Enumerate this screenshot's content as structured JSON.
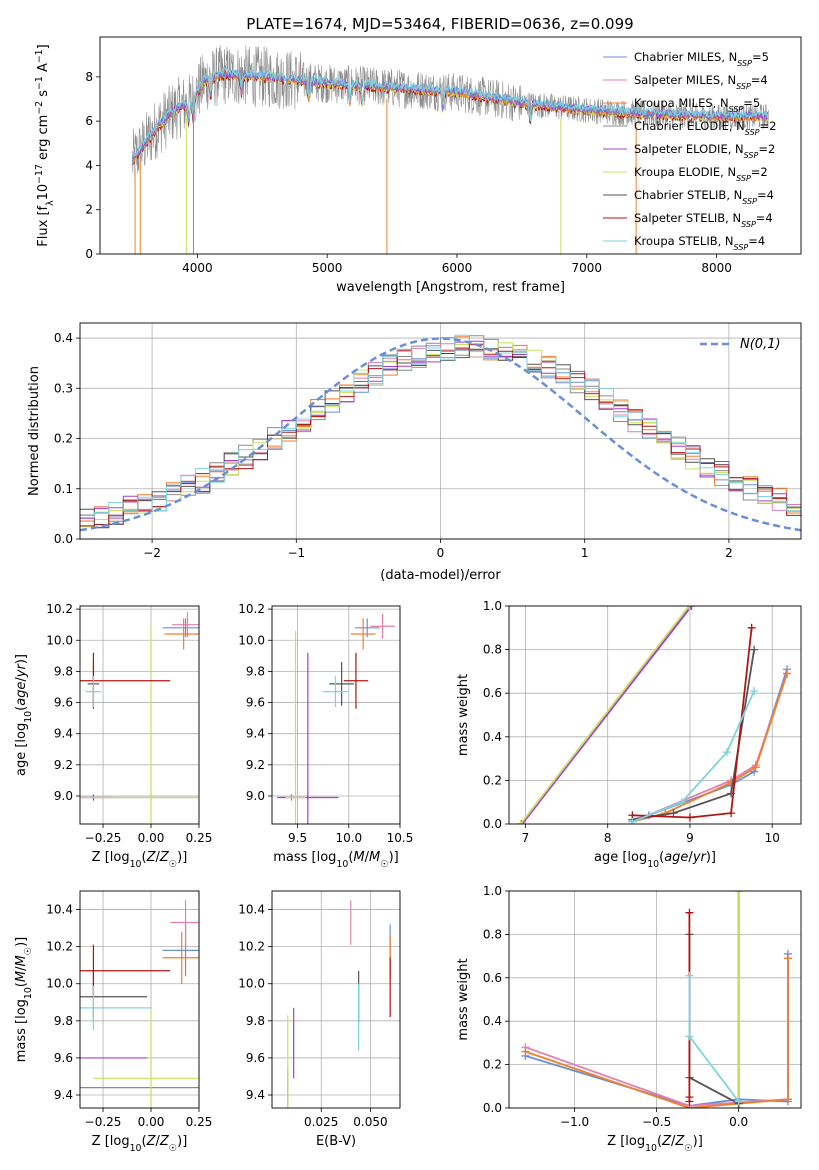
{
  "figure": {
    "title": "PLATE=1674, MJD=53464, FIBERID=0636, z=0.099"
  },
  "colors": {
    "chabrier_miles": "#6a8fd6",
    "salpeter_miles": "#e37fb0",
    "kroupa_miles": "#f07f2a",
    "chabrier_elodie": "#8c8c8c",
    "salpeter_elodie": "#a43fd0",
    "kroupa_elodie": "#c9e05a",
    "chabrier_stelib": "#555555",
    "salpeter_stelib": "#b01515",
    "kroupa_stelib": "#7fd3dd",
    "grid": "#b0b0b0"
  },
  "legend_spectrum": [
    "Chabrier MILES, N_SSP=5",
    "Salpeter MILES, N_SSP=4",
    "Kroupa MILES, N_SSP=5",
    "Chabrier ELODIE, N_SSP=2",
    "Salpeter ELODIE, N_SSP=2",
    "Kroupa ELODIE, N_SSP=2",
    "Chabrier STELIB, N_SSP=4",
    "Salpeter STELIB, N_SSP=4",
    "Kroupa STELIB, N_SSP=4"
  ],
  "legend_hist": "N(0,1)",
  "chart_data": [
    {
      "id": "spectrum",
      "type": "line",
      "xlabel": "wavelength [Angstrom, rest frame]",
      "ylabel": "Flux [f_λ 10^-17 erg cm^-2 s^-1 A^-1]",
      "xlim": [
        3250,
        8650
      ],
      "ylim": [
        0,
        9.8
      ],
      "xticks": [
        4000,
        5000,
        6000,
        7000,
        8000
      ],
      "yticks": [
        0,
        2,
        4,
        6,
        8
      ],
      "wavelength_range": [
        3500,
        8400
      ],
      "continuum_knots": {
        "x": [
          3500,
          3700,
          3850,
          3950,
          4050,
          4200,
          4500,
          5000,
          5500,
          6000,
          6500,
          7000,
          7500,
          8000,
          8400
        ],
        "y": [
          4.2,
          5.8,
          6.6,
          6.8,
          7.8,
          8.1,
          8.0,
          7.7,
          7.5,
          7.3,
          6.8,
          6.5,
          6.3,
          6.2,
          6.2
        ]
      }
    },
    {
      "id": "residual_hist",
      "type": "histogram",
      "xlabel": "(data-model)/error",
      "ylabel": "Normed distribution",
      "xlim": [
        -2.5,
        2.5
      ],
      "ylim": [
        0,
        0.43
      ],
      "xticks": [
        -2,
        -1,
        0,
        1,
        2
      ],
      "yticks": [
        0.0,
        0.1,
        0.2,
        0.3,
        0.4
      ],
      "bins": 50,
      "reference": {
        "mean": 0,
        "sigma": 1
      },
      "model_mean_offset": 0.2,
      "model_sigma": 1.15
    },
    {
      "id": "age_vs_Z",
      "type": "errorbar",
      "xlabel": "Z [log10(Z/Z☉)]",
      "ylabel": "age [log10(age/yr)]",
      "xlim": [
        -0.37,
        0.25
      ],
      "ylim": [
        8.82,
        10.22
      ],
      "xticks": [
        -0.25,
        0.0,
        0.25
      ],
      "xticklabels": [
        "−0.25",
        "0.00",
        "0.25"
      ],
      "yticks": [
        9.0,
        9.2,
        9.4,
        9.6,
        9.8,
        10.0,
        10.2
      ],
      "points": [
        {
          "series": "chabrier_miles",
          "x": 0.18,
          "xerr": 0.12,
          "y": 10.08,
          "yerr": 0.06
        },
        {
          "series": "salpeter_miles",
          "x": 0.19,
          "xerr": 0.08,
          "y": 10.1,
          "yerr": 0.08
        },
        {
          "series": "kroupa_miles",
          "x": 0.17,
          "xerr": 0.1,
          "y": 10.04,
          "yerr": 0.1
        },
        {
          "series": "chabrier_elodie",
          "x": 0.0,
          "xerr": 0.42,
          "y": 8.99,
          "yerr": 0.02
        },
        {
          "series": "salpeter_elodie",
          "x": -0.3,
          "xerr": 0.1,
          "y": 8.99,
          "yerr": 0.02
        },
        {
          "series": "kroupa_elodie",
          "x": 0.0,
          "xerr": 0.4,
          "y": 8.99,
          "yerr": 1.1
        },
        {
          "series": "chabrier_stelib",
          "x": -0.3,
          "xerr": 0.03,
          "y": 9.72,
          "yerr": 0.14
        },
        {
          "series": "salpeter_stelib",
          "x": -0.3,
          "xerr": 0.4,
          "y": 9.74,
          "yerr": 0.18
        },
        {
          "series": "kroupa_stelib",
          "x": -0.3,
          "xerr": 0.04,
          "y": 9.67,
          "yerr": 0.1
        }
      ]
    },
    {
      "id": "age_vs_mass",
      "type": "errorbar",
      "xlabel": "mass [log10(M/M☉)]",
      "ylabel": "",
      "xlim": [
        9.25,
        10.5
      ],
      "ylim": [
        8.82,
        10.22
      ],
      "xticks": [
        9.5,
        10.0,
        10.5
      ],
      "xticklabels": [
        "9.5",
        "10.0",
        "10.5"
      ],
      "yticks": [
        9.0,
        9.2,
        9.4,
        9.6,
        9.8,
        10.0,
        10.2
      ],
      "points": [
        {
          "series": "chabrier_miles",
          "x": 10.18,
          "xerr": 0.12,
          "y": 10.08,
          "yerr": 0.06
        },
        {
          "series": "salpeter_miles",
          "x": 10.33,
          "xerr": 0.12,
          "y": 10.09,
          "yerr": 0.08
        },
        {
          "series": "kroupa_miles",
          "x": 10.14,
          "xerr": 0.12,
          "y": 10.04,
          "yerr": 0.1
        },
        {
          "series": "chabrier_elodie",
          "x": 9.44,
          "xerr": 0.12,
          "y": 8.99,
          "yerr": 0.02
        },
        {
          "series": "salpeter_elodie",
          "x": 9.6,
          "xerr": 0.3,
          "y": 8.99,
          "yerr": 0.02
        },
        {
          "series": "kroupa_elodie",
          "x": 9.48,
          "xerr": 0.1,
          "y": 8.99,
          "yerr": 1.07
        },
        {
          "series": "chabrier_stelib",
          "x": 9.93,
          "xerr": 0.12,
          "y": 9.72,
          "yerr": 0.14
        },
        {
          "series": "salpeter_stelib",
          "x": 10.07,
          "xerr": 0.12,
          "y": 9.74,
          "yerr": 0.18
        },
        {
          "series": "kroupa_stelib",
          "x": 9.87,
          "xerr": 0.12,
          "y": 9.67,
          "yerr": 0.1
        },
        {
          "series": "salpeter_elodie",
          "x": 9.6,
          "xerr": 0.0,
          "y": 9.35,
          "yerr": 0.57
        }
      ]
    },
    {
      "id": "weight_vs_age",
      "type": "line",
      "xlabel": "age [log10(age/yr)]",
      "ylabel": "mass weight",
      "xlim": [
        6.8,
        10.35
      ],
      "ylim": [
        0,
        1.0
      ],
      "xticks": [
        7,
        8,
        9,
        10
      ],
      "yticks": [
        0.0,
        0.2,
        0.4,
        0.6,
        0.8,
        1.0
      ],
      "series": [
        {
          "key": "chabrier_miles",
          "x": [
            8.3,
            8.5,
            9.5,
            9.78,
            10.18
          ],
          "y": [
            0.02,
            0.04,
            0.18,
            0.24,
            0.71
          ]
        },
        {
          "key": "salpeter_miles",
          "x": [
            8.3,
            9.5,
            9.8,
            10.18
          ],
          "y": [
            0.01,
            0.2,
            0.27,
            0.69
          ]
        },
        {
          "key": "kroupa_miles",
          "x": [
            8.3,
            8.7,
            9.5,
            9.8,
            10.18
          ],
          "y": [
            0.01,
            0.05,
            0.19,
            0.26,
            0.69
          ]
        },
        {
          "key": "chabrier_elodie",
          "x": [
            6.95,
            9.0
          ],
          "y": [
            0.0,
            1.0
          ]
        },
        {
          "key": "salpeter_elodie",
          "x": [
            6.96,
            9.02
          ],
          "y": [
            0.0,
            1.0
          ]
        },
        {
          "key": "kroupa_elodie",
          "x": [
            6.94,
            8.99
          ],
          "y": [
            0.0,
            1.0
          ]
        },
        {
          "key": "chabrier_stelib",
          "x": [
            8.3,
            8.8,
            9.5,
            9.78
          ],
          "y": [
            0.02,
            0.05,
            0.14,
            0.8
          ]
        },
        {
          "key": "salpeter_stelib",
          "x": [
            8.3,
            9.0,
            9.5,
            9.75
          ],
          "y": [
            0.04,
            0.03,
            0.05,
            0.9
          ]
        },
        {
          "key": "kroupa_stelib",
          "x": [
            8.3,
            8.9,
            9.45,
            9.78
          ],
          "y": [
            0.01,
            0.1,
            0.33,
            0.61
          ]
        }
      ]
    },
    {
      "id": "mass_vs_Z",
      "type": "errorbar",
      "xlabel": "Z [log10(Z/Z☉)]",
      "ylabel": "mass [log10(M/M☉)]",
      "xlim": [
        -0.37,
        0.25
      ],
      "ylim": [
        9.33,
        10.5
      ],
      "xticks": [
        -0.25,
        0.0,
        0.25
      ],
      "xticklabels": [
        "−0.25",
        "0.00",
        "0.25"
      ],
      "yticks": [
        9.4,
        9.6,
        9.8,
        10.0,
        10.2,
        10.4
      ],
      "points": [
        {
          "series": "chabrier_miles",
          "x": 0.18,
          "xerr": 0.12,
          "y": 10.18,
          "yerr": 0.14
        },
        {
          "series": "salpeter_miles",
          "x": 0.18,
          "xerr": 0.08,
          "y": 10.33,
          "yerr": 0.12
        },
        {
          "series": "kroupa_miles",
          "x": 0.16,
          "xerr": 0.1,
          "y": 10.14,
          "yerr": 0.14
        },
        {
          "series": "chabrier_elodie",
          "x": 0.0,
          "xerr": 0.42,
          "y": 9.44,
          "yerr": 0.0
        },
        {
          "series": "salpeter_elodie",
          "x": -0.3,
          "xerr": 0.28,
          "y": 9.6,
          "yerr": 0.0
        },
        {
          "series": "kroupa_elodie",
          "x": 0.0,
          "xerr": 0.3,
          "y": 9.49,
          "yerr": 0.37
        },
        {
          "series": "chabrier_stelib",
          "x": -0.3,
          "xerr": 0.28,
          "y": 9.93,
          "yerr": 0.14
        },
        {
          "series": "salpeter_stelib",
          "x": -0.3,
          "xerr": 0.4,
          "y": 10.07,
          "yerr": 0.14
        },
        {
          "series": "kroupa_stelib",
          "x": -0.3,
          "xerr": 0.3,
          "y": 9.87,
          "yerr": 0.12
        }
      ]
    },
    {
      "id": "mass_vs_ebv",
      "type": "errorbar",
      "xlabel": "E(B-V)",
      "ylabel": "",
      "xlim": [
        0.0,
        0.065
      ],
      "ylim": [
        9.33,
        10.5
      ],
      "xticks": [
        0.025,
        0.05
      ],
      "xticklabels": [
        "0.025",
        "0.050"
      ],
      "yticks": [
        9.4,
        9.6,
        9.8,
        10.0,
        10.2,
        10.4
      ],
      "points": [
        {
          "series": "chabrier_miles",
          "x": 0.06,
          "xerr": 0.0,
          "y": 10.18,
          "yerr": 0.14
        },
        {
          "series": "salpeter_miles",
          "x": 0.04,
          "xerr": 0.0,
          "y": 10.33,
          "yerr": 0.12
        },
        {
          "series": "kroupa_miles",
          "x": 0.06,
          "xerr": 0.0,
          "y": 10.14,
          "yerr": 0.12
        },
        {
          "series": "chabrier_elodie",
          "x": 0.008,
          "xerr": 0.0,
          "y": 9.44,
          "yerr": 0.1
        },
        {
          "series": "salpeter_elodie",
          "x": 0.011,
          "xerr": 0.0,
          "y": 9.68,
          "yerr": 0.19
        },
        {
          "series": "kroupa_elodie",
          "x": 0.008,
          "xerr": 0.0,
          "y": 9.58,
          "yerr": 0.25
        },
        {
          "series": "chabrier_stelib",
          "x": 0.044,
          "xerr": 0.0,
          "y": 9.93,
          "yerr": 0.14
        },
        {
          "series": "salpeter_stelib",
          "x": 0.06,
          "xerr": 0.0,
          "y": 9.98,
          "yerr": 0.16
        },
        {
          "series": "kroupa_stelib",
          "x": 0.044,
          "xerr": 0.0,
          "y": 9.82,
          "yerr": 0.18
        }
      ]
    },
    {
      "id": "weight_vs_Z",
      "type": "line",
      "xlabel": "Z [log10(Z/Z☉)]",
      "ylabel": "mass weight",
      "xlim": [
        -1.4,
        0.38
      ],
      "ylim": [
        0,
        1.0
      ],
      "xticks": [
        -1.0,
        -0.5,
        0.0
      ],
      "xticklabels": [
        "−1.0",
        "−0.5",
        "0.0"
      ],
      "yticks": [
        0.0,
        0.2,
        0.4,
        0.6,
        0.8,
        1.0
      ],
      "series": [
        {
          "key": "chabrier_miles",
          "x": [
            -1.3,
            -0.3,
            0.0,
            0.3,
            0.3
          ],
          "y": [
            0.24,
            0.01,
            0.04,
            0.03,
            0.71
          ]
        },
        {
          "key": "salpeter_miles",
          "x": [
            -1.3,
            -0.3,
            0.3,
            0.3
          ],
          "y": [
            0.28,
            0.01,
            0.04,
            0.69
          ]
        },
        {
          "key": "kroupa_miles",
          "x": [
            -1.3,
            -0.3,
            0.3,
            0.3
          ],
          "y": [
            0.26,
            0.0,
            0.04,
            0.69
          ]
        },
        {
          "key": "chabrier_elodie",
          "x": [
            0.0,
            0.0
          ],
          "y": [
            0.0,
            1.0
          ]
        },
        {
          "key": "salpeter_elodie",
          "x": [
            0.0,
            0.0
          ],
          "y": [
            0.0,
            1.0
          ]
        },
        {
          "key": "kroupa_elodie",
          "x": [
            0.0,
            0.0
          ],
          "y": [
            0.0,
            1.0
          ]
        },
        {
          "key": "chabrier_stelib",
          "x": [
            -0.3,
            -0.3,
            0.0,
            0.0
          ],
          "y": [
            0.8,
            0.14,
            0.02,
            0.03
          ]
        },
        {
          "key": "salpeter_stelib",
          "x": [
            -0.3,
            -0.3,
            -0.3
          ],
          "y": [
            0.9,
            0.05,
            0.03
          ]
        },
        {
          "key": "kroupa_stelib",
          "x": [
            -0.3,
            -0.3,
            0.0,
            0.0
          ],
          "y": [
            0.61,
            0.33,
            0.03,
            0.03
          ]
        }
      ]
    }
  ]
}
